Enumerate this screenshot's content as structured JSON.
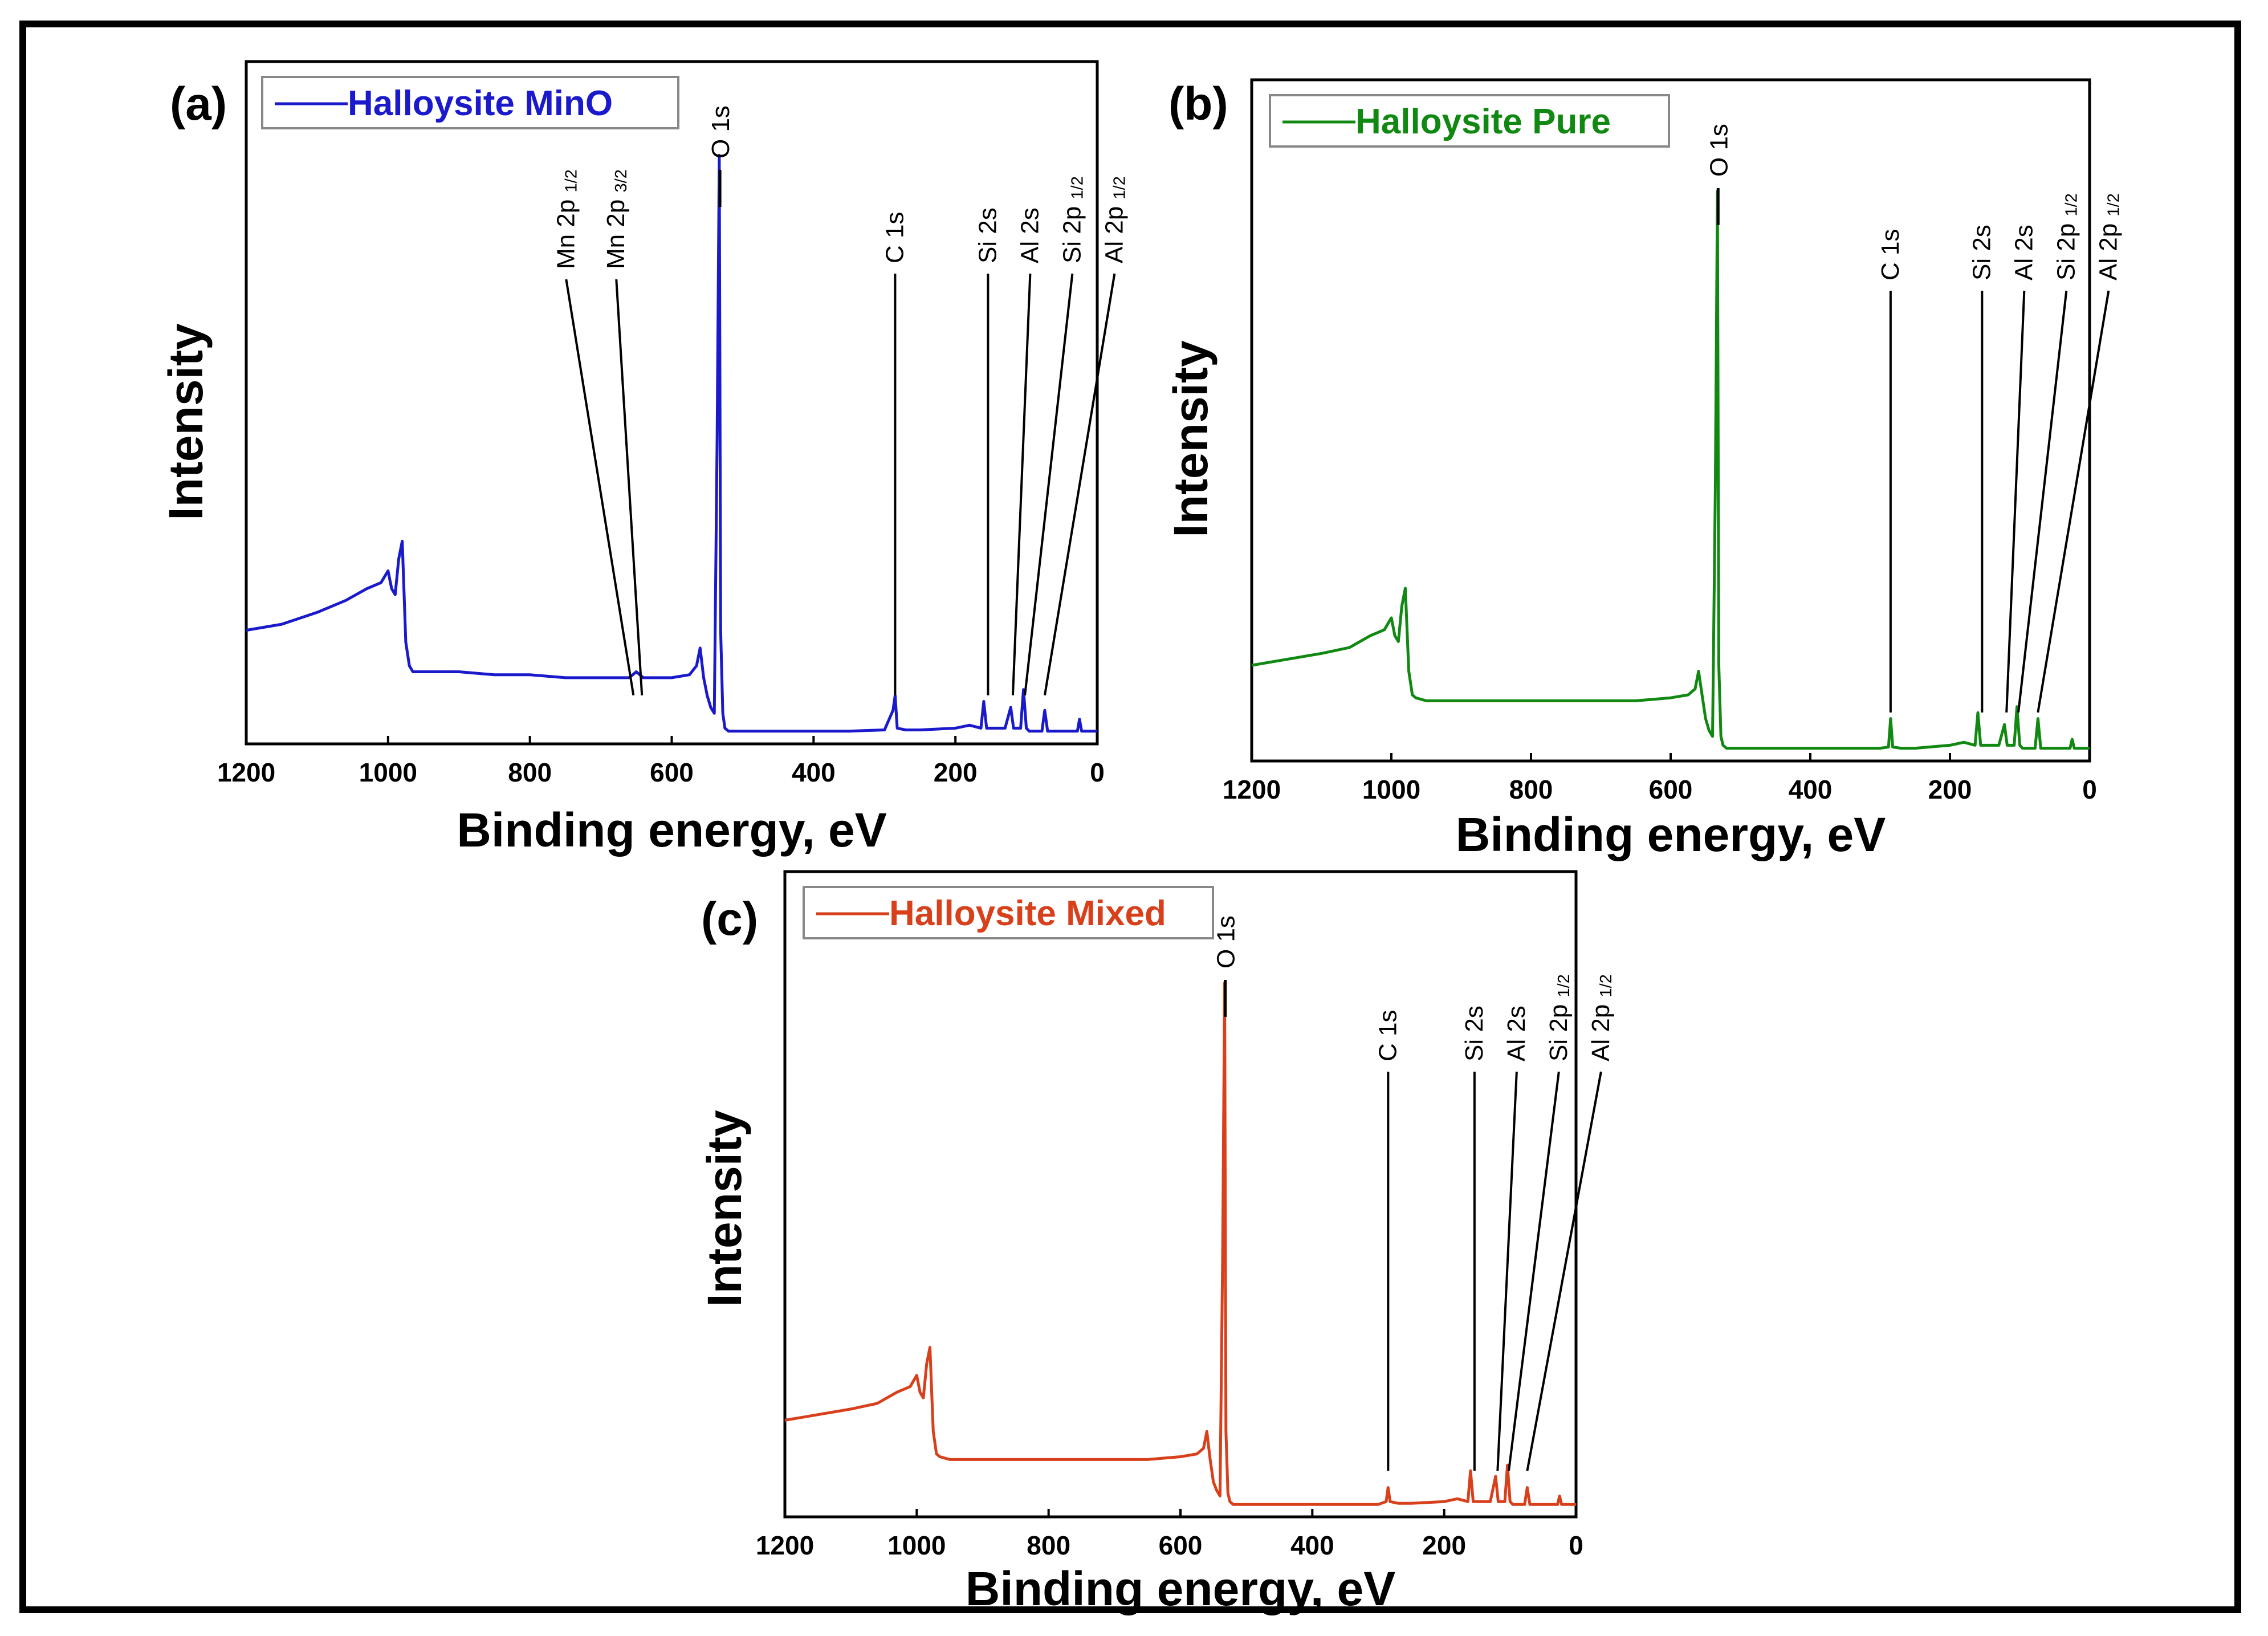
{
  "chart_data": [
    {
      "type": "line",
      "panel_label": "(a)",
      "legend": "Halloysite MinO",
      "color": "#1a1acc",
      "xlabel": "Binding energy, eV",
      "ylabel": "Intensity",
      "xlim": [
        1200,
        0
      ],
      "ylim": [
        0,
        100
      ],
      "x_ticks": [
        "1200",
        "1000",
        "800",
        "600",
        "400",
        "200",
        "0"
      ],
      "x_tick_values": [
        1200,
        1000,
        800,
        600,
        400,
        200,
        0
      ],
      "series": [
        {
          "name": "Halloysite MinO",
          "x": [
            1200,
            1150,
            1100,
            1060,
            1030,
            1010,
            1000,
            995,
            990,
            985,
            980,
            975,
            970,
            965,
            950,
            900,
            850,
            800,
            750,
            700,
            660,
            650,
            640,
            620,
            600,
            575,
            565,
            560,
            555,
            550,
            545,
            540,
            536,
            533,
            531,
            528,
            525,
            520,
            500,
            450,
            400,
            350,
            300,
            288,
            285,
            282,
            270,
            250,
            200,
            180,
            164,
            160,
            156,
            150,
            130,
            122,
            118,
            114,
            108,
            104,
            100,
            96,
            85,
            78,
            74,
            70,
            60,
            40,
            28,
            25,
            22,
            10,
            0
          ],
          "y": [
            18,
            19,
            21,
            23,
            25,
            26,
            28,
            25,
            24,
            30,
            33,
            16,
            12,
            11,
            11,
            11,
            10.5,
            10.5,
            10,
            10,
            10,
            11,
            10,
            10,
            10,
            10.5,
            12,
            15,
            10,
            7,
            5,
            4,
            50,
            98,
            18,
            4,
            1.5,
            1,
            1,
            1,
            1,
            1,
            1.2,
            4.5,
            7,
            1.5,
            1.2,
            1.2,
            1.5,
            2,
            1.5,
            6,
            1.5,
            1.5,
            1.5,
            5,
            1.5,
            1.5,
            1.5,
            8,
            1.5,
            1,
            1,
            1,
            4.5,
            1,
            1,
            1,
            1,
            3,
            1,
            1,
            1
          ]
        }
      ],
      "peak_labels": [
        {
          "name": "Mn 2p",
          "sub": "1/2",
          "x": 654
        },
        {
          "name": "Mn 2p",
          "sub": "3/2",
          "x": 642
        },
        {
          "name": "O 1s",
          "sub": "",
          "x": 532
        },
        {
          "name": "C 1s",
          "sub": "",
          "x": 285
        },
        {
          "name": "Si 2s",
          "sub": "",
          "x": 154
        },
        {
          "name": "Al 2s",
          "sub": "",
          "x": 119
        },
        {
          "name": "Si 2p",
          "sub": "1/2",
          "x": 102
        },
        {
          "name": "Al 2p",
          "sub": "1/2",
          "x": 74
        }
      ]
    },
    {
      "type": "line",
      "panel_label": "(b)",
      "legend": "Halloysite Pure",
      "color": "#118811",
      "xlabel": "Binding energy, eV",
      "ylabel": "Intensity",
      "xlim": [
        1200,
        0
      ],
      "ylim": [
        0,
        100
      ],
      "x_ticks": [
        "1200",
        "1000",
        "800",
        "600",
        "400",
        "200",
        "0"
      ],
      "x_tick_values": [
        1200,
        1000,
        800,
        600,
        400,
        200,
        0
      ],
      "series": [
        {
          "name": "Halloysite Pure",
          "x": [
            1200,
            1150,
            1100,
            1060,
            1030,
            1010,
            1000,
            995,
            990,
            985,
            980,
            975,
            970,
            965,
            950,
            900,
            850,
            800,
            750,
            700,
            650,
            600,
            575,
            565,
            560,
            555,
            550,
            545,
            540,
            536,
            533,
            531,
            528,
            525,
            520,
            500,
            450,
            400,
            350,
            300,
            288,
            285,
            282,
            270,
            250,
            200,
            180,
            164,
            160,
            156,
            150,
            130,
            122,
            118,
            114,
            108,
            104,
            100,
            96,
            85,
            78,
            74,
            70,
            60,
            40,
            28,
            25,
            22,
            10,
            0
          ],
          "y": [
            15,
            16,
            17,
            18,
            20,
            21,
            23,
            20,
            19,
            25,
            28,
            14,
            10,
            9.5,
            9,
            9,
            9,
            9,
            9,
            9,
            9,
            9.5,
            10,
            11,
            14,
            10,
            6,
            4,
            3,
            45,
            95,
            15,
            3,
            1.5,
            1,
            1,
            1,
            1,
            1,
            1,
            1.2,
            6,
            1.2,
            1,
            1,
            1.5,
            2,
            1.5,
            7,
            1.5,
            1.5,
            1.5,
            5,
            1.5,
            1.5,
            1.5,
            8,
            1.5,
            1,
            1,
            1,
            6,
            1,
            1,
            1,
            1,
            2.5,
            1,
            1,
            1
          ]
        }
      ],
      "peak_labels": [
        {
          "name": "O 1s",
          "sub": "",
          "x": 532
        },
        {
          "name": "C 1s",
          "sub": "",
          "x": 285
        },
        {
          "name": "Si 2s",
          "sub": "",
          "x": 154
        },
        {
          "name": "Al 2s",
          "sub": "",
          "x": 119
        },
        {
          "name": "Si 2p",
          "sub": "1/2",
          "x": 102
        },
        {
          "name": "Al 2p",
          "sub": "1/2",
          "x": 74
        }
      ]
    },
    {
      "type": "line",
      "panel_label": "(c)",
      "legend": "Halloysite Mixed",
      "color": "#d8401c",
      "xlabel": "Binding energy, eV",
      "ylabel": "Intensity",
      "xlim": [
        1200,
        0
      ],
      "ylim": [
        0,
        100
      ],
      "x_ticks": [
        "1200",
        "1000",
        "800",
        "600",
        "400",
        "200",
        "0"
      ],
      "x_tick_values": [
        1200,
        1000,
        800,
        600,
        400,
        200,
        0
      ],
      "series": [
        {
          "name": "Halloysite Mixed",
          "x": [
            1200,
            1150,
            1100,
            1060,
            1030,
            1010,
            1000,
            995,
            990,
            985,
            980,
            975,
            970,
            965,
            950,
            900,
            850,
            800,
            750,
            700,
            650,
            600,
            575,
            565,
            560,
            555,
            550,
            545,
            540,
            536,
            533,
            531,
            528,
            525,
            520,
            500,
            450,
            400,
            350,
            300,
            288,
            285,
            282,
            270,
            250,
            200,
            180,
            164,
            160,
            156,
            150,
            130,
            122,
            118,
            114,
            108,
            104,
            100,
            96,
            85,
            78,
            74,
            70,
            60,
            40,
            28,
            25,
            22,
            10,
            0
          ],
          "y": [
            16,
            17,
            18,
            19,
            21,
            22,
            24,
            21,
            20,
            26,
            29,
            14,
            10,
            9.5,
            9,
            9,
            9,
            9,
            9,
            9,
            9,
            9.5,
            10,
            11,
            14,
            9,
            5,
            3.5,
            2.5,
            45,
            94,
            14,
            3,
            1.5,
            1,
            1,
            1,
            1,
            1,
            1,
            1.5,
            4,
            1.5,
            1.2,
            1.2,
            1.5,
            2,
            1.5,
            7,
            1.5,
            1.5,
            1.5,
            6,
            1.5,
            1.5,
            1.5,
            8,
            1.5,
            1,
            1,
            1,
            4,
            1,
            1,
            1,
            1,
            2.5,
            1,
            1,
            1
          ]
        }
      ],
      "peak_labels": [
        {
          "name": "O 1s",
          "sub": "",
          "x": 532
        },
        {
          "name": "C 1s",
          "sub": "",
          "x": 285
        },
        {
          "name": "Si 2s",
          "sub": "",
          "x": 154
        },
        {
          "name": "Al 2s",
          "sub": "",
          "x": 119
        },
        {
          "name": "Si 2p",
          "sub": "1/2",
          "x": 102
        },
        {
          "name": "Al 2p",
          "sub": "1/2",
          "x": 74
        }
      ]
    }
  ]
}
